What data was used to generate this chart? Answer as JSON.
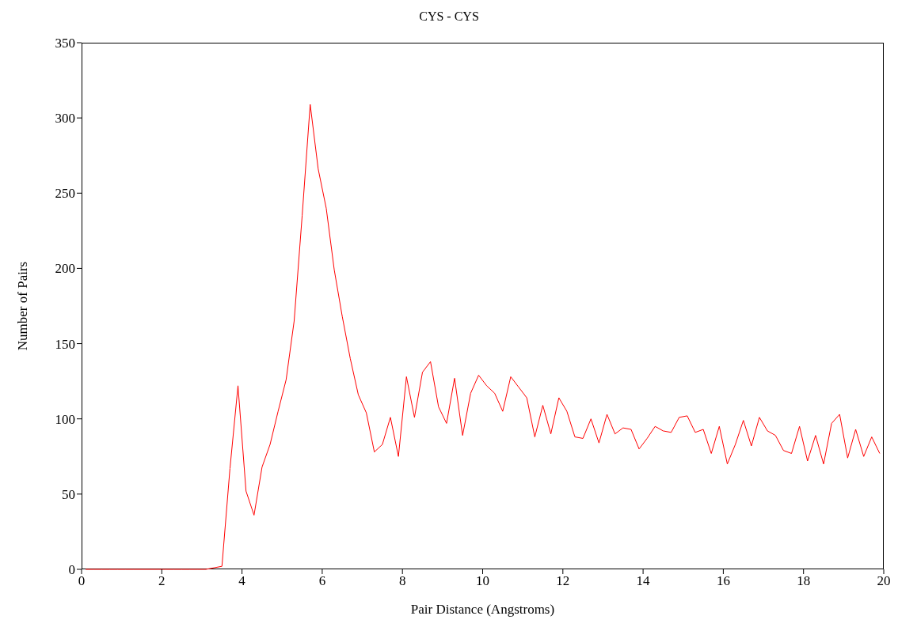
{
  "chart_data": {
    "type": "line",
    "title": "CYS - CYS",
    "xlabel": "Pair Distance (Angstroms)",
    "ylabel": "Number of Pairs",
    "x": [
      0.1,
      0.3,
      0.5,
      0.7,
      0.9,
      1.1,
      1.3,
      1.5,
      1.7,
      1.9,
      2.1,
      2.3,
      2.5,
      2.7,
      2.9,
      3.1,
      3.3,
      3.5,
      3.7,
      3.9,
      4.1,
      4.3,
      4.5,
      4.7,
      4.9,
      5.1,
      5.3,
      5.5,
      5.7,
      5.9,
      6.1,
      6.3,
      6.5,
      6.7,
      6.9,
      7.1,
      7.3,
      7.5,
      7.7,
      7.9,
      8.1,
      8.3,
      8.5,
      8.7,
      8.9,
      9.1,
      9.3,
      9.5,
      9.7,
      9.9,
      10.1,
      10.3,
      10.5,
      10.7,
      10.9,
      11.1,
      11.3,
      11.5,
      11.7,
      11.9,
      12.1,
      12.3,
      12.5,
      12.7,
      12.9,
      13.1,
      13.3,
      13.5,
      13.7,
      13.9,
      14.1,
      14.3,
      14.5,
      14.7,
      14.9,
      15.1,
      15.3,
      15.5,
      15.7,
      15.9,
      16.1,
      16.3,
      16.5,
      16.7,
      16.9,
      17.1,
      17.3,
      17.5,
      17.7,
      17.9,
      18.1,
      18.3,
      18.5,
      18.7,
      18.9,
      19.1,
      19.3,
      19.5,
      19.7,
      19.9
    ],
    "series": [
      {
        "color": "#ff0000",
        "values": [
          0,
          0,
          0,
          0,
          0,
          0,
          0,
          0,
          0,
          0,
          0,
          0,
          0,
          0,
          0,
          0,
          1,
          2,
          67,
          122,
          52,
          36,
          68,
          83,
          105,
          126,
          165,
          235,
          309,
          266,
          240,
          199,
          168,
          140,
          116,
          104,
          78,
          83,
          101,
          75,
          128,
          101,
          131,
          138,
          108,
          97,
          127,
          89,
          117,
          129,
          122,
          117,
          105,
          128,
          121,
          114,
          88,
          109,
          90,
          114,
          105,
          88,
          87,
          100,
          84,
          103,
          90,
          94,
          93,
          80,
          87,
          95,
          92,
          91,
          101,
          102,
          91,
          93,
          77,
          95,
          70,
          83,
          99,
          82,
          101,
          92,
          89,
          79,
          77,
          95,
          72,
          89,
          70,
          97,
          103,
          74,
          93,
          75,
          88,
          77
        ]
      }
    ],
    "xlim": [
      0,
      20
    ],
    "xticks": [
      0,
      2,
      4,
      6,
      8,
      10,
      12,
      14,
      16,
      18,
      20
    ],
    "ylim": [
      0,
      350
    ],
    "yticks": [
      0,
      50,
      100,
      150,
      200,
      250,
      300,
      350
    ],
    "grid": false,
    "legend": false,
    "marker": "none",
    "line_style": "solid"
  }
}
